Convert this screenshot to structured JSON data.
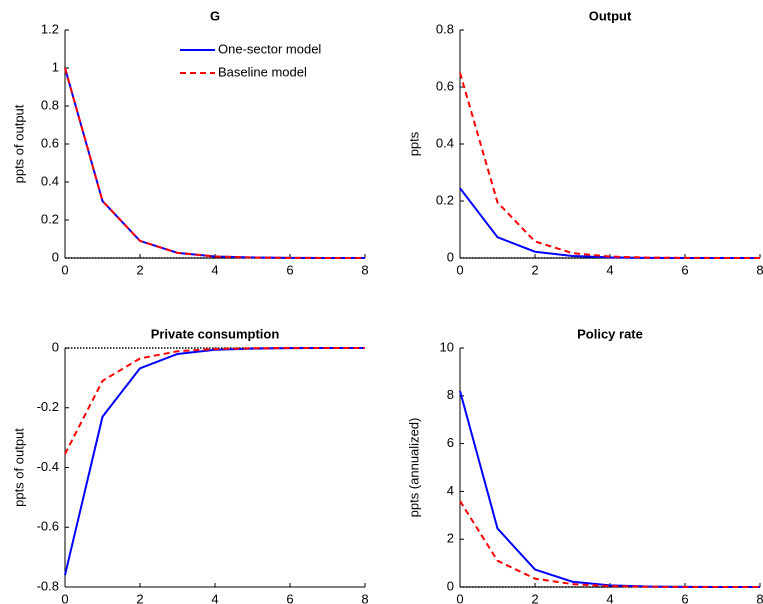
{
  "chart_data": [
    {
      "type": "line",
      "title": "G",
      "ylabel": "ppts of output",
      "x": [
        0,
        1,
        2,
        3,
        4,
        5,
        6,
        7,
        8
      ],
      "xlim": [
        0,
        8
      ],
      "xticks": [
        0,
        2,
        4,
        6,
        8
      ],
      "ylim": [
        0,
        1.2
      ],
      "yticks": [
        0,
        0.2,
        0.4,
        0.6,
        0.8,
        1,
        1.2
      ],
      "hline": 0,
      "legend": "northeast",
      "series": [
        {
          "name": "One-sector model",
          "color": "#0000ff",
          "dash": "solid",
          "values": [
            1,
            0.3,
            0.09,
            0.027,
            0.008,
            0.0025,
            0.0008,
            0.0002,
            0.0001
          ]
        },
        {
          "name": "Baseline model",
          "color": "#ff0000",
          "dash": "dashed",
          "values": [
            1,
            0.3,
            0.09,
            0.027,
            0.008,
            0.0025,
            0.0008,
            0.0002,
            0.0001
          ]
        }
      ]
    },
    {
      "type": "line",
      "title": "Output",
      "ylabel": "ppts",
      "x": [
        0,
        1,
        2,
        3,
        4,
        5,
        6,
        7,
        8
      ],
      "xlim": [
        0,
        8
      ],
      "xticks": [
        0,
        2,
        4,
        6,
        8
      ],
      "ylim": [
        0,
        0.8
      ],
      "yticks": [
        0,
        0.2,
        0.4,
        0.6,
        0.8
      ],
      "hline": 0,
      "series": [
        {
          "color": "#0000ff",
          "dash": "solid",
          "values": [
            0.245,
            0.073,
            0.022,
            0.007,
            0.002,
            0.0006,
            0.0002,
            0,
            0
          ]
        },
        {
          "color": "#ff0000",
          "dash": "dashed",
          "values": [
            0.65,
            0.195,
            0.058,
            0.017,
            0.005,
            0.0015,
            0.0005,
            0.0001,
            0
          ]
        }
      ]
    },
    {
      "type": "line",
      "title": "Private consumption",
      "ylabel": "ppts of output",
      "x": [
        0,
        1,
        2,
        3,
        4,
        5,
        6,
        7,
        8
      ],
      "xlim": [
        0,
        8
      ],
      "xticks": [
        0,
        2,
        4,
        6,
        8
      ],
      "ylim": [
        -0.8,
        0
      ],
      "yticks": [
        -0.8,
        -0.6,
        -0.4,
        -0.2,
        0
      ],
      "hline": 0,
      "series": [
        {
          "color": "#0000ff",
          "dash": "solid",
          "values": [
            -0.76,
            -0.23,
            -0.068,
            -0.02,
            -0.006,
            -0.002,
            -0.0005,
            -0.0002,
            0
          ]
        },
        {
          "color": "#ff0000",
          "dash": "dashed",
          "values": [
            -0.355,
            -0.11,
            -0.035,
            -0.011,
            -0.003,
            -0.001,
            -0.0003,
            0,
            0
          ]
        }
      ]
    },
    {
      "type": "line",
      "title": "Policy rate",
      "ylabel": "ppts (annualized)",
      "x": [
        0,
        1,
        2,
        3,
        4,
        5,
        6,
        7,
        8
      ],
      "xlim": [
        0,
        8
      ],
      "xticks": [
        0,
        2,
        4,
        6,
        8
      ],
      "ylim": [
        0,
        10
      ],
      "yticks": [
        0,
        2,
        4,
        6,
        8,
        10
      ],
      "hline": 0,
      "series": [
        {
          "color": "#0000ff",
          "dash": "solid",
          "values": [
            8.2,
            2.45,
            0.73,
            0.22,
            0.07,
            0.02,
            0.006,
            0.002,
            0
          ]
        },
        {
          "color": "#ff0000",
          "dash": "dashed",
          "values": [
            3.6,
            1.1,
            0.35,
            0.12,
            0.04,
            0.01,
            0.003,
            0.001,
            0
          ]
        }
      ]
    }
  ]
}
